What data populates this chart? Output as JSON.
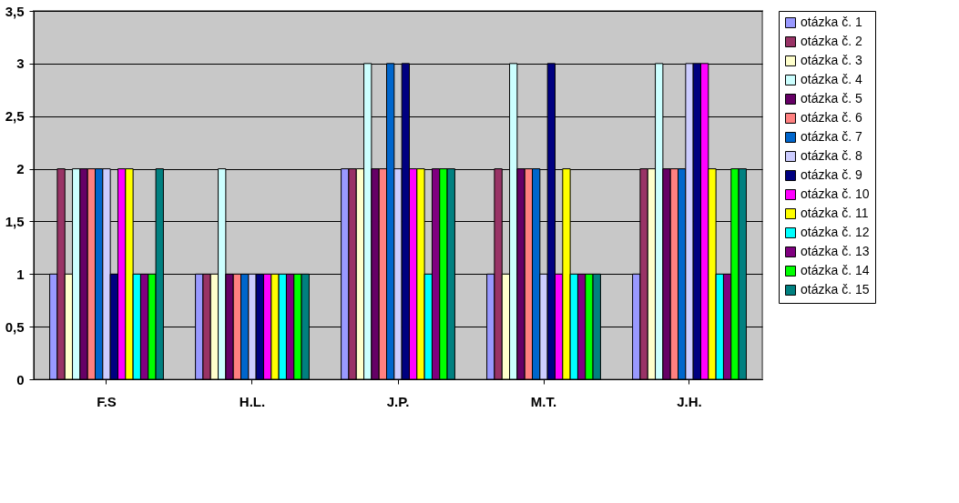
{
  "chart_data": {
    "type": "bar",
    "categories": [
      "F.S",
      "H.L.",
      "J.P.",
      "M.T.",
      "J.H."
    ],
    "series": [
      {
        "name": "otázka č. 1",
        "color": "#9999ff",
        "values": [
          1,
          1,
          2,
          1,
          1
        ]
      },
      {
        "name": "otázka č. 2",
        "color": "#993366",
        "values": [
          2,
          1,
          2,
          2,
          2
        ]
      },
      {
        "name": "otázka č. 3",
        "color": "#ffffcc",
        "values": [
          1,
          1,
          2,
          1,
          2
        ]
      },
      {
        "name": "otázka č. 4",
        "color": "#ccffff",
        "values": [
          2,
          2,
          3,
          3,
          3
        ]
      },
      {
        "name": "otázka č. 5",
        "color": "#660066",
        "values": [
          2,
          1,
          2,
          2,
          2
        ]
      },
      {
        "name": "otázka č. 6",
        "color": "#ff8080",
        "values": [
          2,
          1,
          2,
          2,
          2
        ]
      },
      {
        "name": "otázka č. 7",
        "color": "#0066cc",
        "values": [
          2,
          1,
          3,
          2,
          2
        ]
      },
      {
        "name": "otázka č. 8",
        "color": "#ccccff",
        "values": [
          2,
          1,
          2,
          1,
          3
        ]
      },
      {
        "name": "otázka č. 9",
        "color": "#000080",
        "values": [
          1,
          1,
          3,
          3,
          3
        ]
      },
      {
        "name": "otázka č. 10",
        "color": "#ff00ff",
        "values": [
          2,
          1,
          2,
          1,
          3
        ]
      },
      {
        "name": "otázka č. 11",
        "color": "#ffff00",
        "values": [
          2,
          1,
          2,
          2,
          2
        ]
      },
      {
        "name": "otázka č. 12",
        "color": "#00ffff",
        "values": [
          1,
          1,
          1,
          1,
          1
        ]
      },
      {
        "name": "otázka č. 13",
        "color": "#800080",
        "values": [
          1,
          1,
          2,
          1,
          1
        ]
      },
      {
        "name": "otázka č. 14",
        "color": "#00ff00",
        "values": [
          1,
          1,
          2,
          1,
          2
        ]
      },
      {
        "name": "otázka č. 15",
        "color": "#008080",
        "values": [
          2,
          1,
          2,
          1,
          2
        ]
      }
    ],
    "ylim": [
      0,
      3.5
    ],
    "yticks": [
      0,
      {
        "value": 0.5,
        "label": "0,5"
      },
      1,
      {
        "value": 1.5,
        "label": "1,5"
      },
      2,
      {
        "value": 2.5,
        "label": "2,5"
      },
      3,
      {
        "value": 3.5,
        "label": "3,5"
      }
    ],
    "grid": "y",
    "legend": "right"
  }
}
